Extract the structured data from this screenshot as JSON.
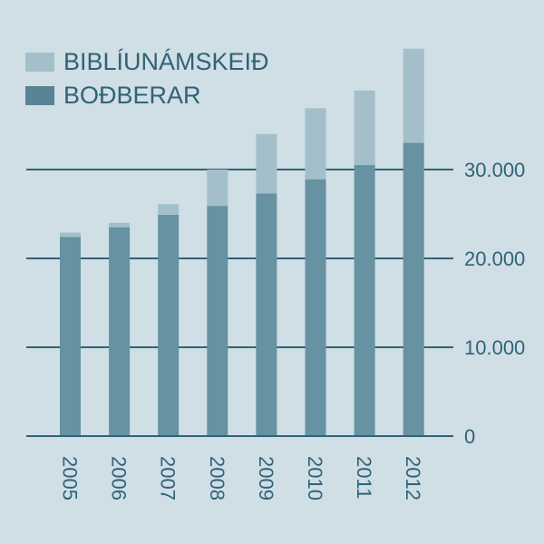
{
  "colors": {
    "background": "#d0dee5",
    "bodberar": "#6692a2",
    "bodberar_legend": "#5a8394",
    "bibliunamskeid": "#a3bfca",
    "gridline": "#2f6378",
    "text": "#2f6378"
  },
  "legend": [
    {
      "label": "BIBLÍUNÁMSKEIÐ",
      "key": "bibliunamskeid"
    },
    {
      "label": "BOÐBERAR",
      "key": "bodberar"
    }
  ],
  "chart_data": {
    "type": "bar",
    "stacked": true,
    "title": "",
    "xlabel": "",
    "ylabel": "",
    "categories": [
      "2005",
      "2006",
      "2007",
      "2008",
      "2009",
      "2010",
      "2011",
      "2012"
    ],
    "series": [
      {
        "name": "BOÐBERAR",
        "values": [
          22400,
          23500,
          24900,
          25900,
          27300,
          28900,
          30500,
          33000
        ]
      },
      {
        "name": "BIBLÍUNÁMSKEIÐ",
        "values": [
          500,
          500,
          1200,
          4100,
          6700,
          8000,
          8400,
          10600
        ]
      }
    ],
    "totals": [
      22900,
      24000,
      26100,
      30000,
      34000,
      36900,
      38900,
      43600
    ],
    "y_ticks": [
      0,
      10000,
      20000,
      30000
    ],
    "y_tick_labels": [
      "0",
      "10.000",
      "20.000",
      "30.000"
    ],
    "ylim": [
      0,
      44000
    ],
    "y_axis_position": "right",
    "x_tick_rotation": 90,
    "grid": true,
    "legend_position": "top-left"
  }
}
